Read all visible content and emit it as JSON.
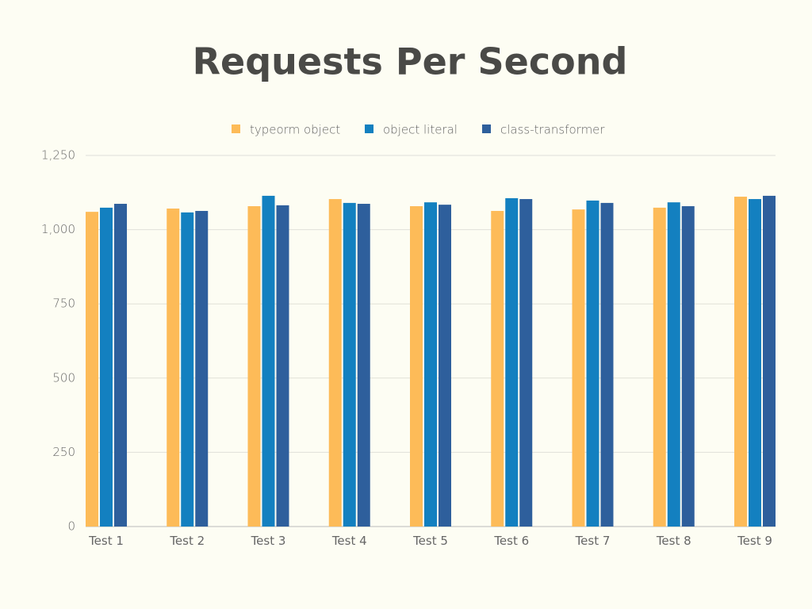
{
  "chart_data": {
    "type": "bar",
    "title": "Requests Per Second",
    "categories": [
      "Test 1",
      "Test 2",
      "Test 3",
      "Test 4",
      "Test 5",
      "Test 6",
      "Test 7",
      "Test 8",
      "Test 9"
    ],
    "series": [
      {
        "name": "typeorm object",
        "color": "#fdbb58",
        "values": [
          1060,
          1071,
          1079,
          1103,
          1079,
          1063,
          1068,
          1074,
          1111
        ]
      },
      {
        "name": "object literal",
        "color": "#1380c0",
        "values": [
          1074,
          1058,
          1114,
          1090,
          1092,
          1106,
          1098,
          1092,
          1103
        ]
      },
      {
        "name": "class-transformer",
        "color": "#2e5f9c",
        "values": [
          1087,
          1063,
          1082,
          1087,
          1084,
          1103,
          1090,
          1079,
          1114
        ]
      }
    ],
    "ylim": [
      0,
      1250
    ],
    "yticks": [
      0,
      250,
      500,
      750,
      {
        "value": 1000,
        "label": "1,000"
      },
      {
        "value": 1250,
        "label": "1,250"
      }
    ],
    "grid": true
  }
}
